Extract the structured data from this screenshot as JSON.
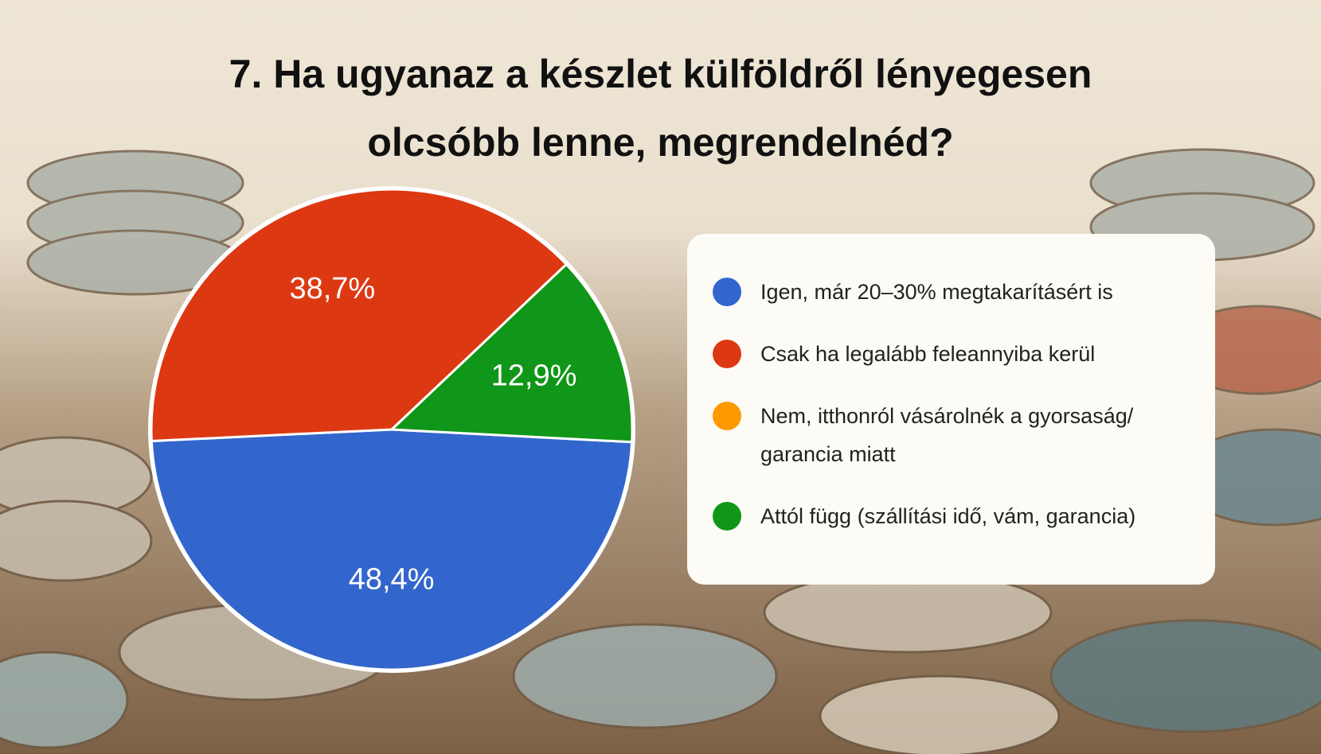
{
  "chart_data": {
    "type": "pie",
    "title": "7. Ha ugyanaz a készlet külföldről lényegesen olcsóbb lenne, megrendelnéd?",
    "categories": [
      "Igen, már 20–30% megtakarításért is",
      "Csak ha legalább feleannyiba kerül",
      "Nem, itthonról vásárolnék a gyorsaság/ garancia miatt",
      "Attól függ (szállítási idő, vám, garancia)"
    ],
    "values": [
      48.4,
      38.7,
      0,
      12.9
    ],
    "value_labels": [
      "48,4%",
      "38,7%",
      null,
      "12,9%"
    ],
    "colors": [
      "#3366cc",
      "#dc3912",
      "#ff9900",
      "#109618"
    ],
    "legend": "right"
  }
}
